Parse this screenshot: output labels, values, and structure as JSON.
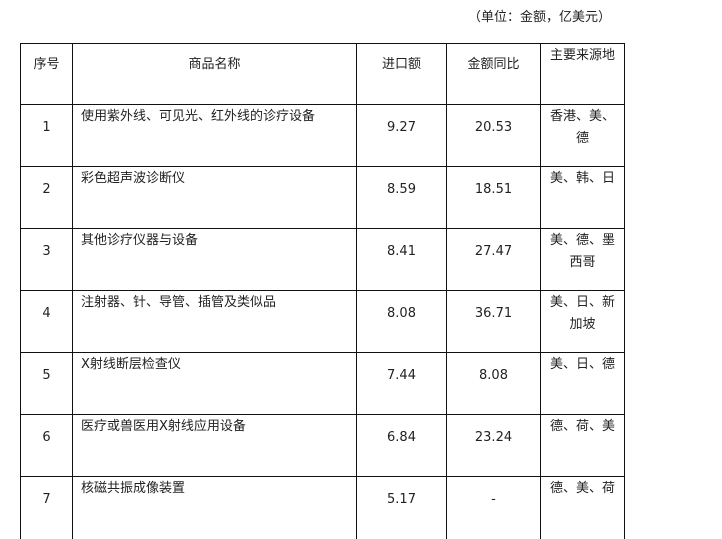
{
  "unit_note": "（单位：金额，亿美元）",
  "table": {
    "headers": [
      "序号",
      "商品名称",
      "进口额",
      "金额同比",
      "主要来源地"
    ],
    "rows": [
      {
        "no": "1",
        "name": "使用紫外线、可见光、红外线的诊疗设备",
        "import": "9.27",
        "yoy": "20.53",
        "source": "香港、美、德"
      },
      {
        "no": "2",
        "name": "彩色超声波诊断仪",
        "import": "8.59",
        "yoy": "18.51",
        "source": "美、韩、日"
      },
      {
        "no": "3",
        "name": "其他诊疗仪器与设备",
        "import": "8.41",
        "yoy": "27.47",
        "source": "美、德、墨西哥"
      },
      {
        "no": "4",
        "name": "注射器、针、导管、插管及类似品",
        "import": "8.08",
        "yoy": "36.71",
        "source": "美、日、新加坡"
      },
      {
        "no": "5",
        "name": "X射线断层检查仪",
        "import": "7.44",
        "yoy": "8.08",
        "source": "美、日、德"
      },
      {
        "no": "6",
        "name": "医疗或兽医用X射线应用设备",
        "import": "6.84",
        "yoy": "23.24",
        "source": "德、荷、美"
      },
      {
        "no": "7",
        "name": "核磁共振成像装置",
        "import": "5.17",
        "yoy": "-",
        "source": "德、美、荷"
      }
    ]
  }
}
